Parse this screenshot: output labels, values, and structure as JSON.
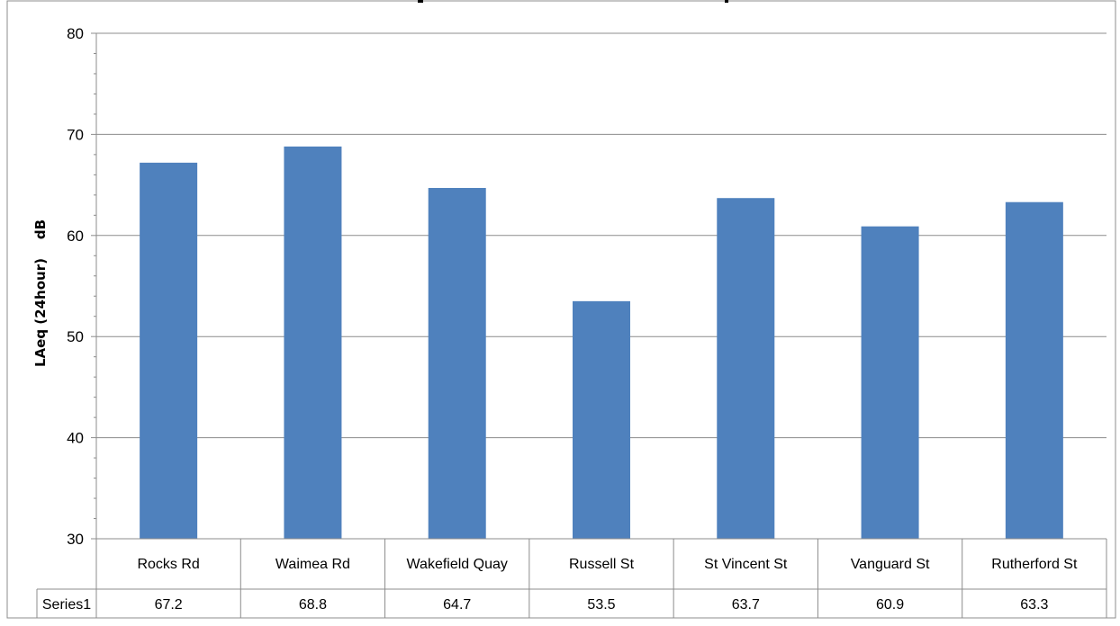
{
  "chart_data": {
    "type": "bar",
    "title": "",
    "xlabel": "",
    "ylabel": "LAeq (24hour)    dB",
    "ylim": [
      30,
      80
    ],
    "yticks": [
      30,
      40,
      50,
      60,
      70,
      80
    ],
    "grid": true,
    "legend": "none",
    "categories": [
      "Rocks Rd",
      "Waimea Rd",
      "Wakefield Quay",
      "Russell St",
      "St Vincent St",
      "Vanguard St",
      "Rutherford St"
    ],
    "series": [
      {
        "name": "Series1",
        "values": [
          67.2,
          68.8,
          64.7,
          53.5,
          63.7,
          60.9,
          63.3
        ],
        "value_labels": [
          "67.2",
          "68.8",
          "64.7",
          "53.5",
          "63.7",
          "60.9",
          "63.3"
        ],
        "color": "#4f81bd"
      }
    ],
    "data_table": true
  }
}
